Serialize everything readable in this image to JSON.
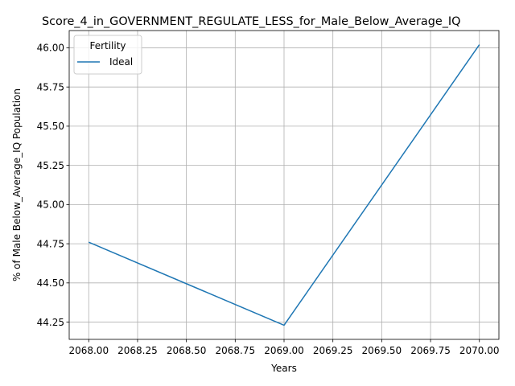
{
  "chart_data": {
    "type": "line",
    "title": "Score_4_in_GOVERNMENT_REGULATE_LESS_for_Male_Below_Average_IQ",
    "xlabel": "Years",
    "ylabel": "% of Male Below_Average_IQ Population",
    "x": [
      2068,
      2069,
      2070
    ],
    "series": [
      {
        "name": "Ideal",
        "values": [
          44.76,
          44.23,
          46.02
        ],
        "color": "#1f77b4"
      }
    ],
    "xlim": [
      2067.9,
      2070.1
    ],
    "ylim": [
      44.14,
      46.11
    ],
    "x_ticks": [
      "2068.00",
      "2068.25",
      "2068.50",
      "2068.75",
      "2069.00",
      "2069.25",
      "2069.50",
      "2069.75",
      "2070.00"
    ],
    "x_tick_values": [
      2068.0,
      2068.25,
      2068.5,
      2068.75,
      2069.0,
      2069.25,
      2069.5,
      2069.75,
      2070.0
    ],
    "y_ticks": [
      "44.25",
      "44.50",
      "44.75",
      "45.00",
      "45.25",
      "45.50",
      "45.75",
      "46.00"
    ],
    "y_tick_values": [
      44.25,
      44.5,
      44.75,
      45.0,
      45.25,
      45.5,
      45.75,
      46.0
    ],
    "grid": true,
    "legend": {
      "title": "Fertility",
      "placement": "top-left"
    }
  }
}
